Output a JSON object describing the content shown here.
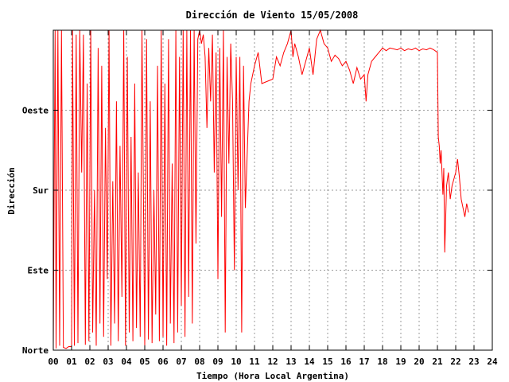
{
  "chart_data": {
    "type": "line",
    "title": "Dirección de Viento 15/05/2008",
    "xlabel": "Tiempo (Hora Local Argentina)",
    "ylabel": "Dirección",
    "xlim": [
      0,
      24
    ],
    "ylim": [
      0,
      360
    ],
    "x_ticks": [
      "00",
      "01",
      "02",
      "03",
      "04",
      "05",
      "06",
      "07",
      "08",
      "09",
      "10",
      "11",
      "12",
      "13",
      "14",
      "15",
      "16",
      "17",
      "18",
      "19",
      "20",
      "21",
      "22",
      "23",
      "24"
    ],
    "y_ticks": [
      {
        "value": 0,
        "label": "Norte"
      },
      {
        "value": 90,
        "label": "Este"
      },
      {
        "value": 180,
        "label": "Sur"
      },
      {
        "value": 270,
        "label": "Oeste"
      }
    ],
    "grid": true,
    "line_color": "#ff0000",
    "series": [
      {
        "values": [
          [
            0.0,
            5
          ],
          [
            0.05,
            200
          ],
          [
            0.1,
            360
          ],
          [
            0.15,
            2
          ],
          [
            0.25,
            360
          ],
          [
            0.35,
            5
          ],
          [
            0.45,
            360
          ],
          [
            0.55,
            3
          ],
          [
            0.7,
            2
          ],
          [
            0.85,
            4
          ],
          [
            1.0,
            4
          ],
          [
            1.05,
            360
          ],
          [
            1.15,
            5
          ],
          [
            1.25,
            355
          ],
          [
            1.35,
            8
          ],
          [
            1.45,
            360
          ],
          [
            1.55,
            200
          ],
          [
            1.65,
            355
          ],
          [
            1.75,
            6
          ],
          [
            1.85,
            300
          ],
          [
            1.95,
            10
          ],
          [
            2.05,
            360
          ],
          [
            2.15,
            20
          ],
          [
            2.25,
            180
          ],
          [
            2.35,
            5
          ],
          [
            2.45,
            340
          ],
          [
            2.55,
            30
          ],
          [
            2.65,
            320
          ],
          [
            2.75,
            15
          ],
          [
            2.85,
            250
          ],
          [
            2.95,
            80
          ],
          [
            3.05,
            360
          ],
          [
            3.15,
            5
          ],
          [
            3.25,
            190
          ],
          [
            3.35,
            30
          ],
          [
            3.45,
            280
          ],
          [
            3.55,
            10
          ],
          [
            3.65,
            230
          ],
          [
            3.75,
            60
          ],
          [
            3.85,
            360
          ],
          [
            3.95,
            5
          ],
          [
            4.05,
            330
          ],
          [
            4.15,
            20
          ],
          [
            4.25,
            240
          ],
          [
            4.35,
            10
          ],
          [
            4.45,
            300
          ],
          [
            4.55,
            25
          ],
          [
            4.65,
            200
          ],
          [
            4.75,
            15
          ],
          [
            4.85,
            360
          ],
          [
            5.0,
            5
          ],
          [
            5.1,
            350
          ],
          [
            5.2,
            12
          ],
          [
            5.3,
            280
          ],
          [
            5.4,
            8
          ],
          [
            5.5,
            180
          ],
          [
            5.6,
            40
          ],
          [
            5.7,
            320
          ],
          [
            5.8,
            10
          ],
          [
            5.9,
            360
          ],
          [
            6.0,
            15
          ],
          [
            6.1,
            300
          ],
          [
            6.2,
            5
          ],
          [
            6.3,
            350
          ],
          [
            6.4,
            30
          ],
          [
            6.5,
            210
          ],
          [
            6.6,
            8
          ],
          [
            6.7,
            360
          ],
          [
            6.8,
            20
          ],
          [
            6.9,
            330
          ],
          [
            7.0,
            50
          ],
          [
            7.1,
            360
          ],
          [
            7.2,
            15
          ],
          [
            7.3,
            360
          ],
          [
            7.4,
            60
          ],
          [
            7.5,
            360
          ],
          [
            7.6,
            30
          ],
          [
            7.7,
            360
          ],
          [
            7.8,
            120
          ],
          [
            7.9,
            350
          ],
          [
            8.0,
            360
          ],
          [
            8.1,
            345
          ],
          [
            8.2,
            355
          ],
          [
            8.3,
            330
          ],
          [
            8.4,
            250
          ],
          [
            8.5,
            340
          ],
          [
            8.6,
            280
          ],
          [
            8.7,
            355
          ],
          [
            8.8,
            200
          ],
          [
            8.9,
            335
          ],
          [
            9.0,
            80
          ],
          [
            9.1,
            340
          ],
          [
            9.2,
            150
          ],
          [
            9.3,
            360
          ],
          [
            9.4,
            20
          ],
          [
            9.5,
            330
          ],
          [
            9.6,
            210
          ],
          [
            9.7,
            345
          ],
          [
            9.8,
            280
          ],
          [
            9.9,
            90
          ],
          [
            10.0,
            330
          ],
          [
            10.1,
            180
          ],
          [
            10.2,
            330
          ],
          [
            10.3,
            20
          ],
          [
            10.4,
            320
          ],
          [
            10.5,
            160
          ],
          [
            10.7,
            280
          ],
          [
            10.8,
            300
          ],
          [
            11.0,
            320
          ],
          [
            11.2,
            335
          ],
          [
            11.4,
            300
          ],
          [
            12.0,
            305
          ],
          [
            12.2,
            330
          ],
          [
            12.4,
            320
          ],
          [
            12.6,
            335
          ],
          [
            12.8,
            345
          ],
          [
            13.0,
            360
          ],
          [
            13.1,
            330
          ],
          [
            13.2,
            345
          ],
          [
            13.4,
            330
          ],
          [
            13.6,
            310
          ],
          [
            13.8,
            325
          ],
          [
            14.0,
            340
          ],
          [
            14.2,
            310
          ],
          [
            14.4,
            350
          ],
          [
            14.6,
            360
          ],
          [
            14.8,
            345
          ],
          [
            15.0,
            340
          ],
          [
            15.2,
            325
          ],
          [
            15.4,
            332
          ],
          [
            15.6,
            328
          ],
          [
            15.8,
            320
          ],
          [
            16.0,
            325
          ],
          [
            16.2,
            315
          ],
          [
            16.4,
            300
          ],
          [
            16.6,
            318
          ],
          [
            16.8,
            305
          ],
          [
            17.0,
            310
          ],
          [
            17.1,
            280
          ],
          [
            17.2,
            310
          ],
          [
            17.4,
            325
          ],
          [
            17.6,
            330
          ],
          [
            17.8,
            335
          ],
          [
            18.0,
            340
          ],
          [
            18.2,
            337
          ],
          [
            18.4,
            340
          ],
          [
            18.6,
            339
          ],
          [
            18.8,
            338
          ],
          [
            19.0,
            340
          ],
          [
            19.2,
            337
          ],
          [
            19.4,
            339
          ],
          [
            19.6,
            338
          ],
          [
            19.8,
            340
          ],
          [
            20.0,
            337
          ],
          [
            20.2,
            339
          ],
          [
            20.4,
            338
          ],
          [
            20.6,
            340
          ],
          [
            20.8,
            338
          ],
          [
            21.0,
            335
          ],
          [
            21.05,
            240
          ],
          [
            21.1,
            230
          ],
          [
            21.15,
            210
          ],
          [
            21.2,
            225
          ],
          [
            21.3,
            175
          ],
          [
            21.35,
            205
          ],
          [
            21.4,
            110
          ],
          [
            21.5,
            185
          ],
          [
            21.6,
            200
          ],
          [
            21.7,
            170
          ],
          [
            21.8,
            185
          ],
          [
            22.0,
            200
          ],
          [
            22.1,
            215
          ],
          [
            22.2,
            195
          ],
          [
            22.3,
            170
          ],
          [
            22.4,
            160
          ],
          [
            22.5,
            150
          ],
          [
            22.6,
            165
          ],
          [
            22.7,
            155
          ]
        ]
      }
    ]
  }
}
